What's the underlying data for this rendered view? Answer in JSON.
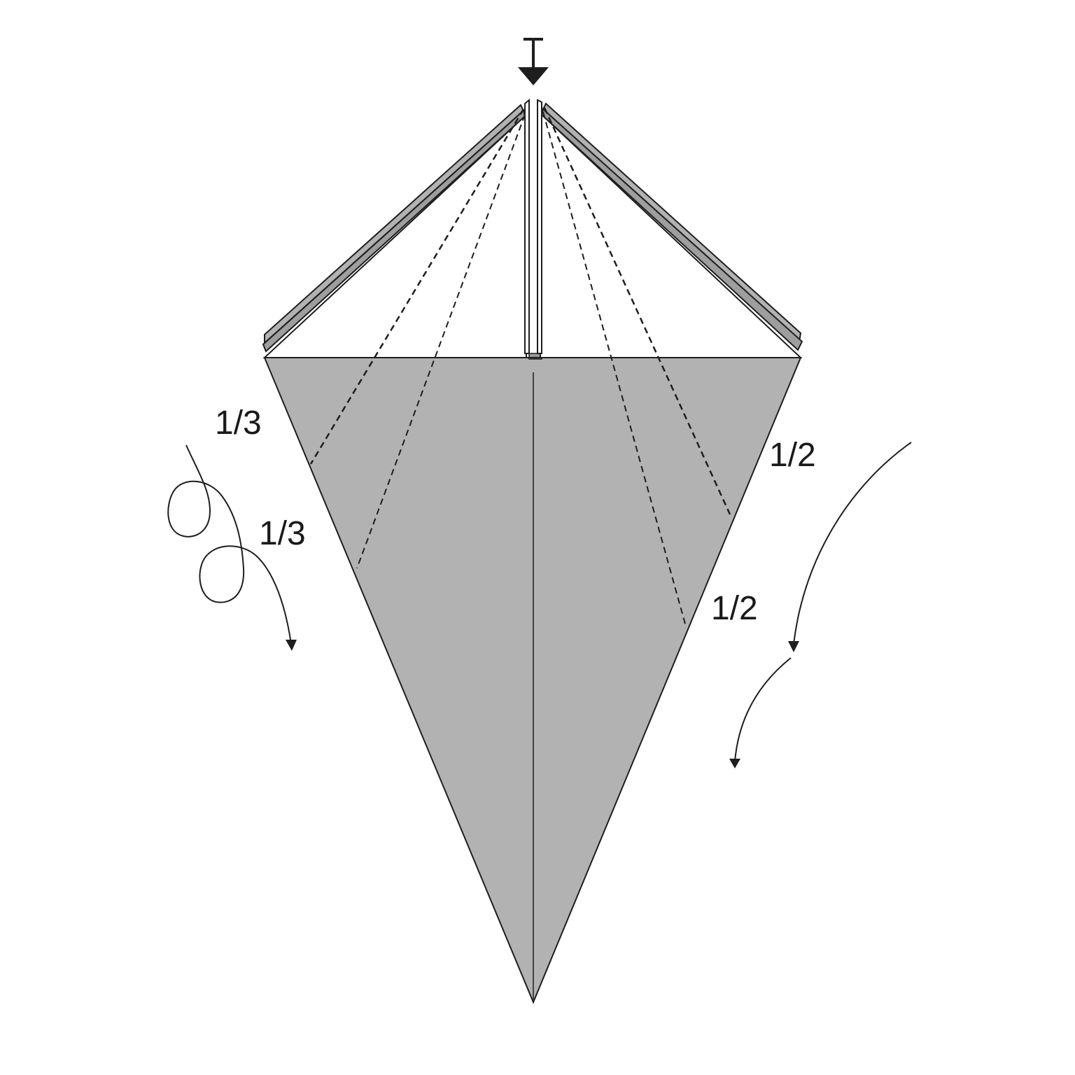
{
  "diagram": {
    "colors": {
      "paper": "#b2b2b2",
      "line": "#1e1e1e",
      "background": "#ffffff"
    },
    "labels": {
      "left_upper": "1/3",
      "left_lower": "1/3",
      "right_upper": "1/2",
      "right_lower": "1/2"
    },
    "symbols": {
      "top": "push-arrow-icon",
      "left": "rabbit-ear-twist-arrow-icon",
      "right": "double-fold-arrow-icon"
    }
  }
}
